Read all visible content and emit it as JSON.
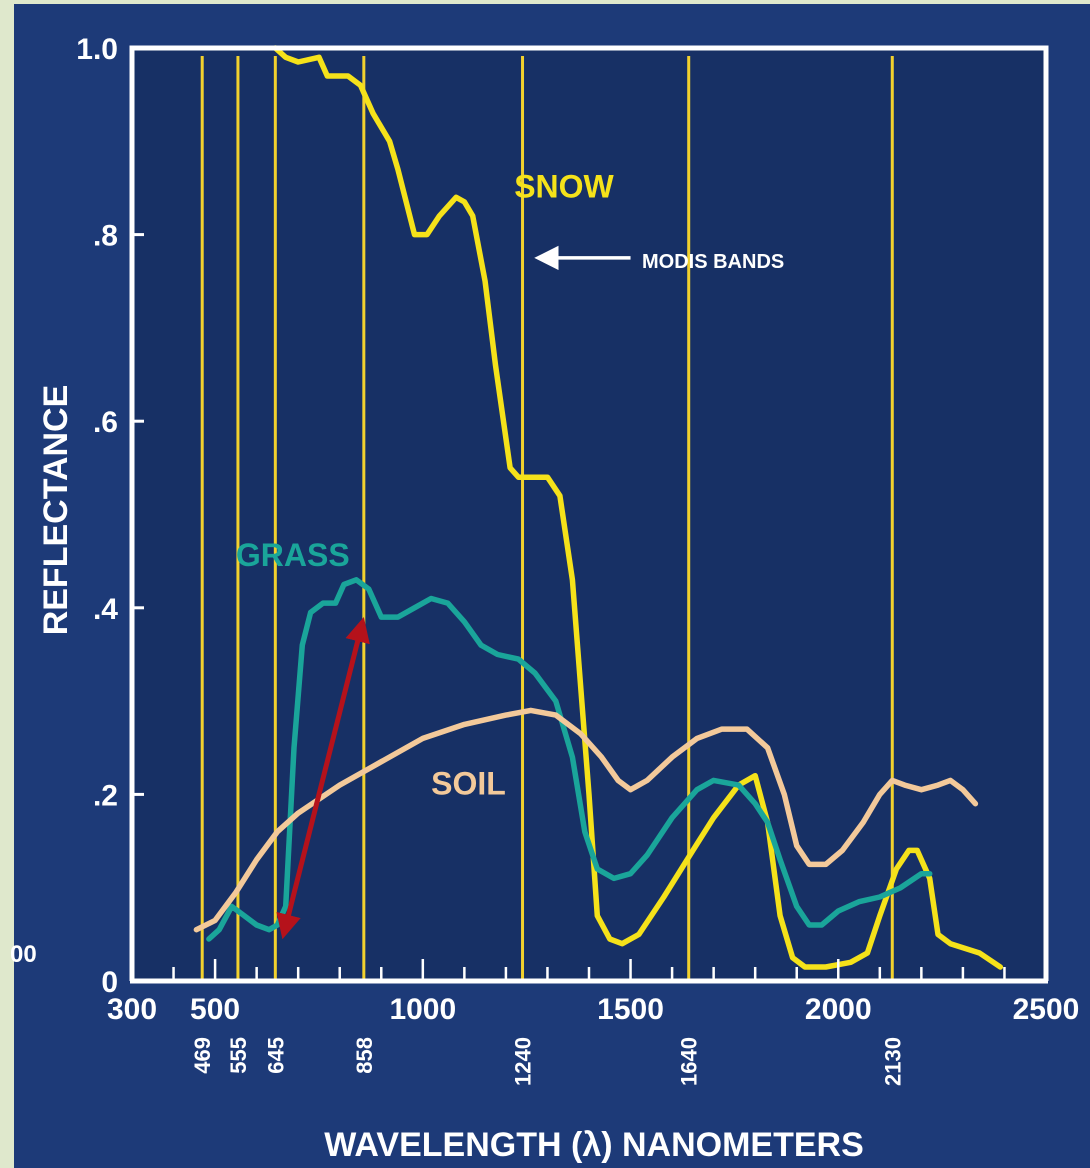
{
  "chart_data": {
    "type": "line",
    "title": "",
    "xlabel": "WAVELENGTH (λ) NANOMETERS",
    "ylabel": "REFLECTANCE",
    "xlim": [
      300,
      2500
    ],
    "ylim": [
      0,
      1.0
    ],
    "x_ticks": [
      {
        "value": 300,
        "label": "300"
      },
      {
        "value": 500,
        "label": "500"
      },
      {
        "value": 1000,
        "label": "1000"
      },
      {
        "value": 1500,
        "label": "1500"
      },
      {
        "value": 2000,
        "label": "2000"
      },
      {
        "value": 2500,
        "label": "2500"
      }
    ],
    "y_ticks": [
      {
        "value": 0,
        "label": "0"
      },
      {
        "value": 0.2,
        "label": ".2"
      },
      {
        "value": 0.4,
        "label": ".4"
      },
      {
        "value": 0.6,
        "label": ".6"
      },
      {
        "value": 0.8,
        "label": ".8"
      },
      {
        "value": 1.0,
        "label": "1.0"
      }
    ],
    "stray_label": "00",
    "modis_bands": {
      "label": "MODIS BANDS",
      "color": "#f2d12e",
      "bands": [
        {
          "value": 469,
          "label": "469"
        },
        {
          "value": 555,
          "label": "555"
        },
        {
          "value": 645,
          "label": "645"
        },
        {
          "value": 858,
          "label": "858"
        },
        {
          "value": 1240,
          "label": "1240"
        },
        {
          "value": 1640,
          "label": "1640"
        },
        {
          "value": 2130,
          "label": "2130"
        }
      ]
    },
    "series": [
      {
        "name": "SNOW",
        "color": "#f5e21a",
        "label_at": [
          1220,
          0.84
        ],
        "points": [
          [
            645,
            1.0
          ],
          [
            670,
            0.99
          ],
          [
            700,
            0.985
          ],
          [
            750,
            0.99
          ],
          [
            770,
            0.97
          ],
          [
            820,
            0.97
          ],
          [
            850,
            0.96
          ],
          [
            880,
            0.93
          ],
          [
            920,
            0.9
          ],
          [
            940,
            0.87
          ],
          [
            980,
            0.8
          ],
          [
            1010,
            0.8
          ],
          [
            1040,
            0.82
          ],
          [
            1080,
            0.84
          ],
          [
            1100,
            0.835
          ],
          [
            1120,
            0.82
          ],
          [
            1150,
            0.75
          ],
          [
            1175,
            0.66
          ],
          [
            1210,
            0.55
          ],
          [
            1230,
            0.54
          ],
          [
            1300,
            0.54
          ],
          [
            1330,
            0.52
          ],
          [
            1360,
            0.43
          ],
          [
            1400,
            0.2
          ],
          [
            1420,
            0.07
          ],
          [
            1450,
            0.045
          ],
          [
            1480,
            0.04
          ],
          [
            1520,
            0.05
          ],
          [
            1580,
            0.09
          ],
          [
            1650,
            0.14
          ],
          [
            1700,
            0.175
          ],
          [
            1760,
            0.21
          ],
          [
            1800,
            0.22
          ],
          [
            1830,
            0.17
          ],
          [
            1860,
            0.07
          ],
          [
            1890,
            0.025
          ],
          [
            1920,
            0.015
          ],
          [
            1970,
            0.015
          ],
          [
            2030,
            0.02
          ],
          [
            2070,
            0.03
          ],
          [
            2100,
            0.07
          ],
          [
            2140,
            0.12
          ],
          [
            2170,
            0.14
          ],
          [
            2190,
            0.14
          ],
          [
            2220,
            0.11
          ],
          [
            2240,
            0.05
          ],
          [
            2270,
            0.04
          ],
          [
            2340,
            0.03
          ],
          [
            2390,
            0.015
          ]
        ]
      },
      {
        "name": "GRASS",
        "color": "#1aa59a",
        "label_at": [
          550,
          0.445
        ],
        "points": [
          [
            485,
            0.045
          ],
          [
            510,
            0.055
          ],
          [
            540,
            0.08
          ],
          [
            570,
            0.07
          ],
          [
            600,
            0.06
          ],
          [
            630,
            0.055
          ],
          [
            650,
            0.06
          ],
          [
            670,
            0.08
          ],
          [
            690,
            0.25
          ],
          [
            710,
            0.36
          ],
          [
            730,
            0.395
          ],
          [
            760,
            0.405
          ],
          [
            790,
            0.405
          ],
          [
            810,
            0.425
          ],
          [
            840,
            0.43
          ],
          [
            870,
            0.42
          ],
          [
            900,
            0.39
          ],
          [
            940,
            0.39
          ],
          [
            980,
            0.4
          ],
          [
            1020,
            0.41
          ],
          [
            1060,
            0.405
          ],
          [
            1100,
            0.385
          ],
          [
            1140,
            0.36
          ],
          [
            1180,
            0.35
          ],
          [
            1230,
            0.345
          ],
          [
            1270,
            0.33
          ],
          [
            1320,
            0.3
          ],
          [
            1360,
            0.24
          ],
          [
            1390,
            0.16
          ],
          [
            1420,
            0.12
          ],
          [
            1460,
            0.11
          ],
          [
            1500,
            0.115
          ],
          [
            1540,
            0.135
          ],
          [
            1600,
            0.175
          ],
          [
            1660,
            0.205
          ],
          [
            1700,
            0.215
          ],
          [
            1760,
            0.21
          ],
          [
            1800,
            0.19
          ],
          [
            1830,
            0.17
          ],
          [
            1860,
            0.13
          ],
          [
            1900,
            0.08
          ],
          [
            1930,
            0.06
          ],
          [
            1960,
            0.06
          ],
          [
            2000,
            0.075
          ],
          [
            2050,
            0.085
          ],
          [
            2100,
            0.09
          ],
          [
            2150,
            0.1
          ],
          [
            2200,
            0.115
          ],
          [
            2220,
            0.115
          ]
        ]
      },
      {
        "name": "SOIL",
        "color": "#f3c99a",
        "label_at": [
          1020,
          0.2
        ],
        "points": [
          [
            455,
            0.055
          ],
          [
            500,
            0.065
          ],
          [
            550,
            0.095
          ],
          [
            600,
            0.13
          ],
          [
            650,
            0.16
          ],
          [
            700,
            0.18
          ],
          [
            800,
            0.21
          ],
          [
            900,
            0.235
          ],
          [
            1000,
            0.26
          ],
          [
            1100,
            0.275
          ],
          [
            1200,
            0.285
          ],
          [
            1260,
            0.29
          ],
          [
            1320,
            0.285
          ],
          [
            1380,
            0.265
          ],
          [
            1430,
            0.24
          ],
          [
            1470,
            0.215
          ],
          [
            1500,
            0.205
          ],
          [
            1540,
            0.215
          ],
          [
            1600,
            0.24
          ],
          [
            1660,
            0.26
          ],
          [
            1720,
            0.27
          ],
          [
            1780,
            0.27
          ],
          [
            1830,
            0.25
          ],
          [
            1870,
            0.2
          ],
          [
            1900,
            0.145
          ],
          [
            1930,
            0.125
          ],
          [
            1970,
            0.125
          ],
          [
            2010,
            0.14
          ],
          [
            2060,
            0.17
          ],
          [
            2100,
            0.2
          ],
          [
            2130,
            0.215
          ],
          [
            2160,
            0.21
          ],
          [
            2200,
            0.205
          ],
          [
            2240,
            0.21
          ],
          [
            2270,
            0.215
          ],
          [
            2300,
            0.205
          ],
          [
            2330,
            0.19
          ]
        ]
      }
    ],
    "annotations": [
      {
        "text": "MODIS BANDS",
        "type": "arrow",
        "arrow_color": "#ffffff",
        "from": [
          1500,
          0.775
        ],
        "to": [
          1280,
          0.775
        ]
      },
      {
        "type": "double-arrow",
        "color": "#b5121b",
        "from": [
          665,
          0.05
        ],
        "to": [
          855,
          0.385
        ]
      }
    ],
    "frame_color": "#ffffff",
    "background_color": "#1d3a78"
  }
}
